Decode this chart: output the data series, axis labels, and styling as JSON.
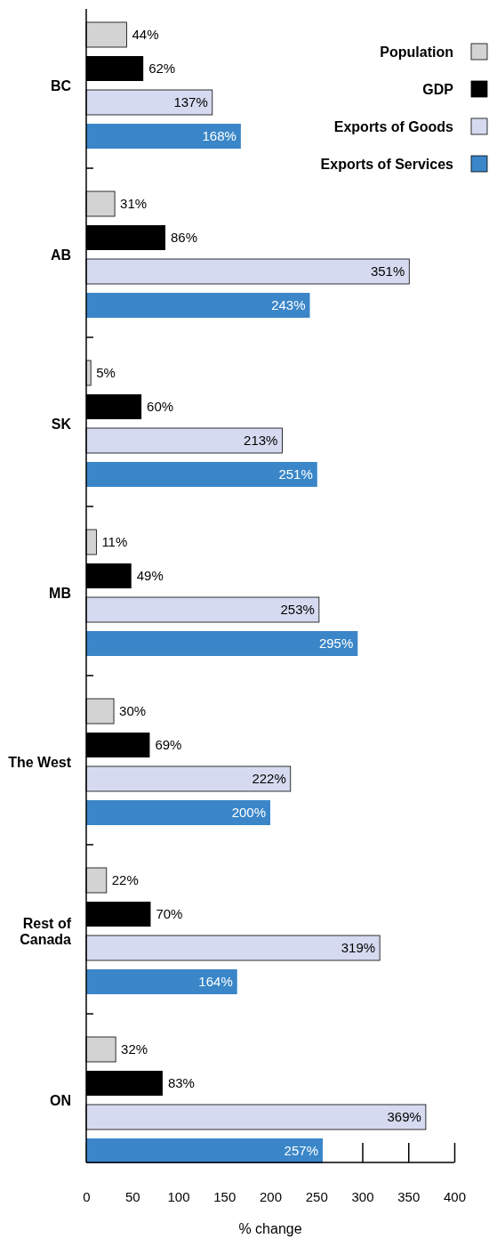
{
  "chart_data": {
    "type": "bar",
    "orientation": "horizontal",
    "xlabel": "% change",
    "categories": [
      "BC",
      "AB",
      "SK",
      "MB",
      "The West",
      "Rest of Canada",
      "ON"
    ],
    "series": [
      {
        "name": "Population",
        "color": "#d3d3d3",
        "values": [
          44,
          31,
          5,
          11,
          30,
          22,
          32
        ],
        "value_labels": [
          "44%",
          "31%",
          "5%",
          "11%",
          "30%",
          "22%",
          "32%"
        ]
      },
      {
        "name": "GDP",
        "color": "#000000",
        "values": [
          62,
          86,
          60,
          49,
          69,
          70,
          83
        ],
        "value_labels": [
          "62%",
          "86%",
          "60%",
          "49%",
          "69%",
          "70%",
          "83%"
        ]
      },
      {
        "name": "Exports of Goods",
        "color": "#d6daf0",
        "values": [
          137,
          351,
          213,
          253,
          222,
          319,
          369
        ],
        "value_labels": [
          "137%",
          "351%",
          "213%",
          "253%",
          "222%",
          "319%",
          "369%"
        ]
      },
      {
        "name": "Exports of Services",
        "color": "#3a86c8",
        "values": [
          168,
          243,
          251,
          295,
          200,
          164,
          257
        ],
        "value_labels": [
          "168%",
          "243%",
          "251%",
          "295%",
          "200%",
          "164%",
          "257%"
        ]
      }
    ],
    "xlim": [
      0,
      400
    ],
    "xticks": [
      0,
      50,
      100,
      150,
      200,
      250,
      300,
      350,
      400
    ],
    "legend": "top right",
    "grid": false
  }
}
